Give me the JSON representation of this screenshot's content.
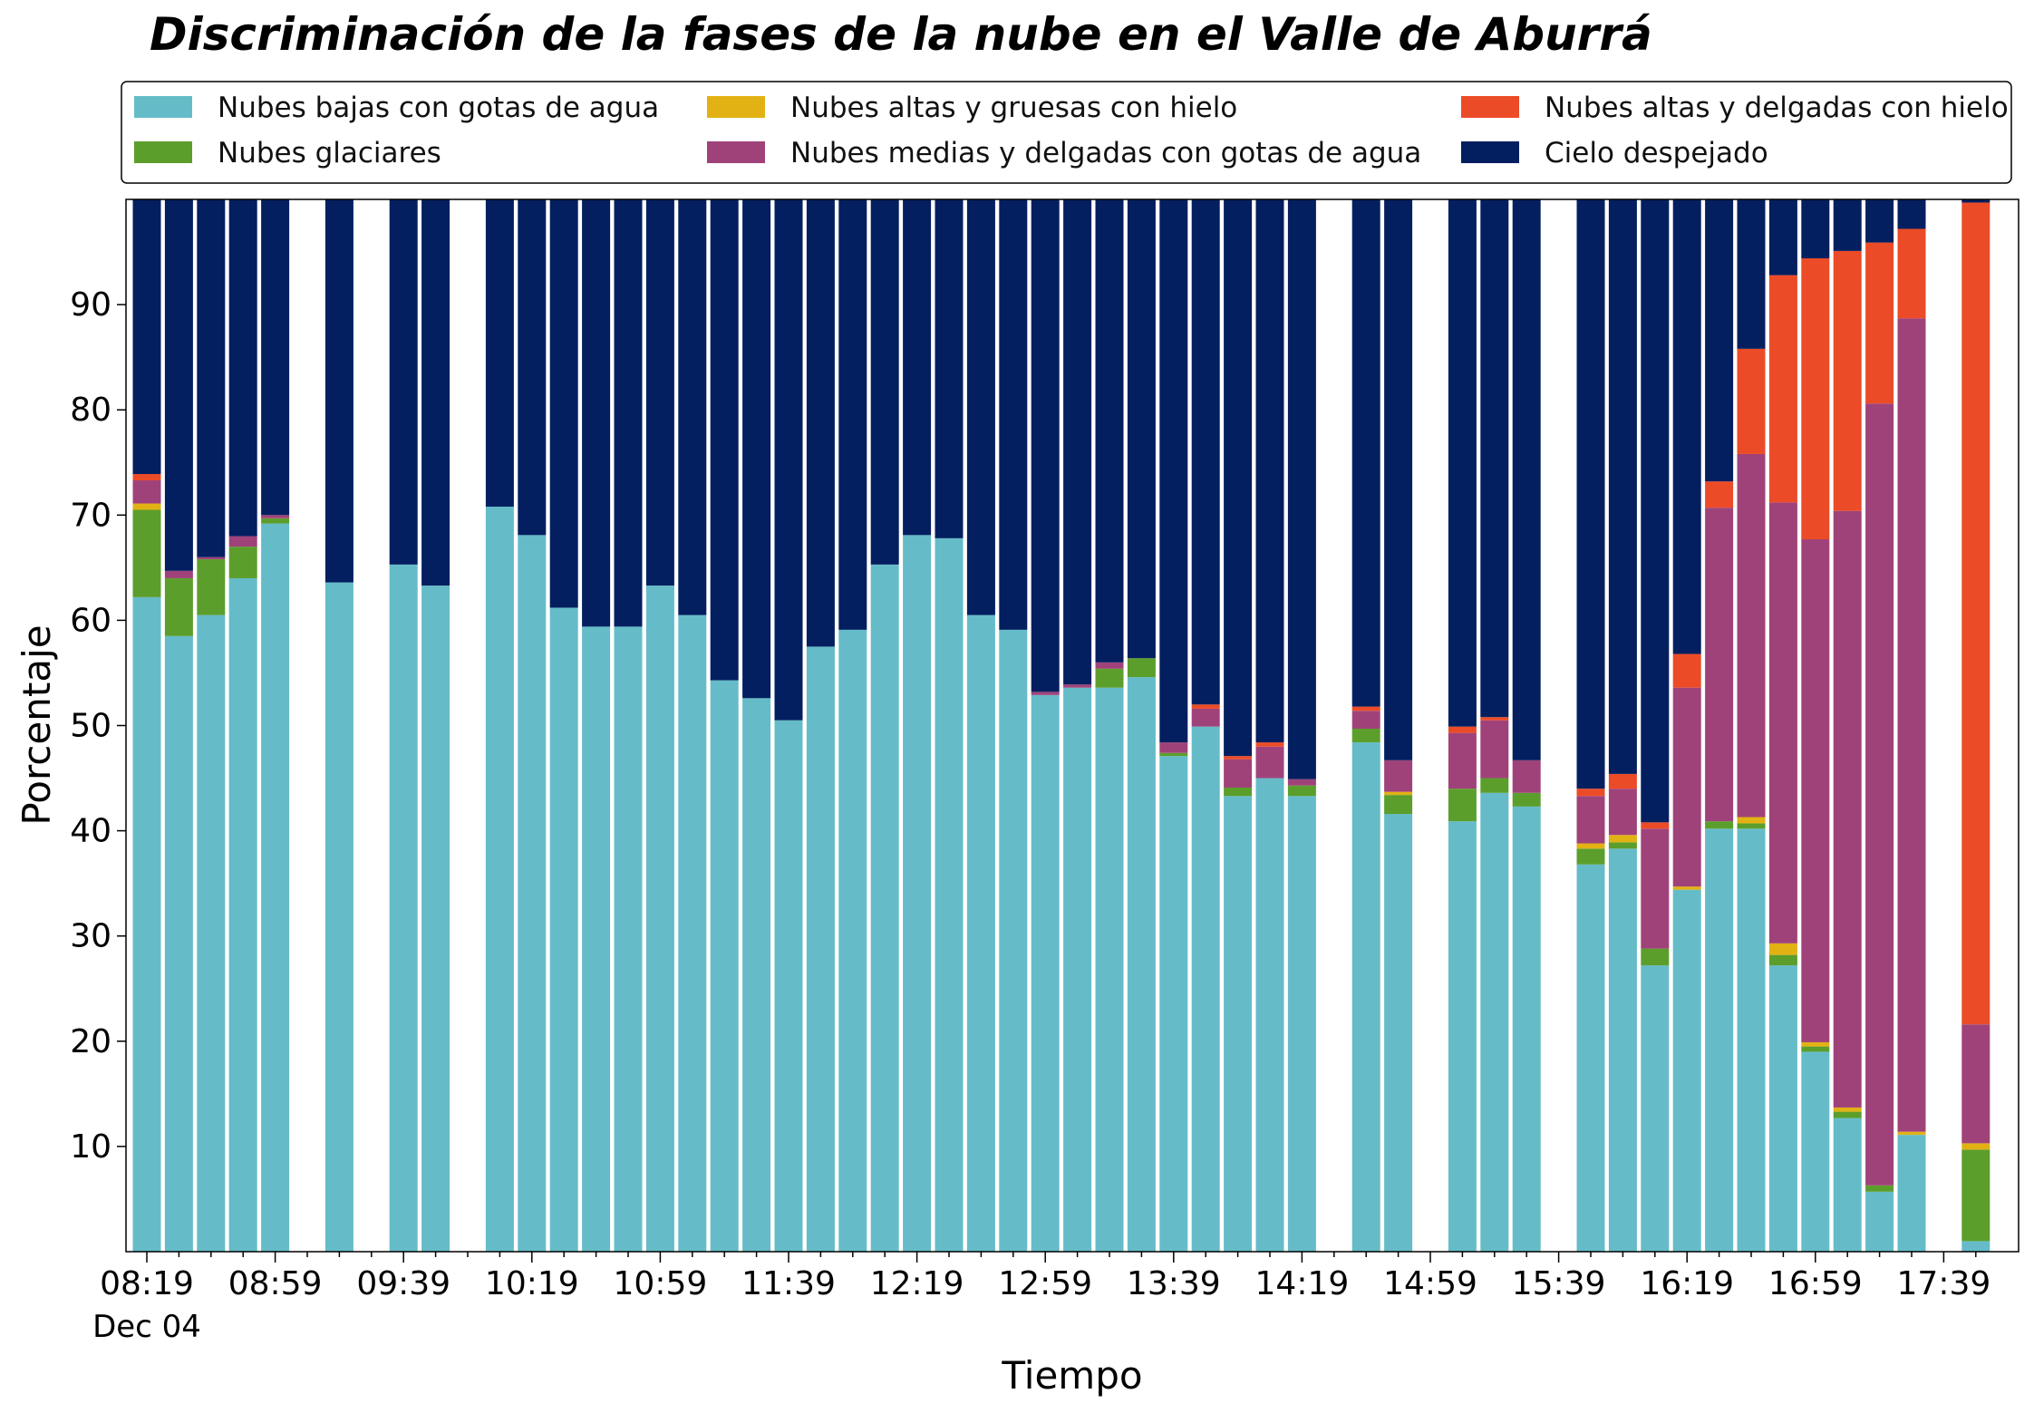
{
  "chart_data": {
    "type": "bar",
    "stacked": true,
    "title": "Discriminación de la fases de la nube en el Valle de Aburrá",
    "xlabel": "Tiempo",
    "ylabel": "Porcentaje",
    "date_label": "Dec 04",
    "ylim": [
      0,
      100
    ],
    "yticks": [
      10,
      20,
      30,
      40,
      50,
      60,
      70,
      80,
      90
    ],
    "xticks": [
      "08:19",
      "08:59",
      "09:39",
      "10:19",
      "10:59",
      "11:39",
      "12:19",
      "12:59",
      "13:39",
      "14:19",
      "14:59",
      "15:39",
      "16:19",
      "16:59",
      "17:39"
    ],
    "grid": false,
    "legend_position": "top",
    "x": [
      "08:19",
      "08:29",
      "08:39",
      "08:49",
      "08:59",
      "09:09",
      "09:19",
      "09:29",
      "09:39",
      "09:49",
      "09:59",
      "10:09",
      "10:19",
      "10:29",
      "10:39",
      "10:49",
      "10:59",
      "11:09",
      "11:19",
      "11:29",
      "11:39",
      "11:49",
      "11:59",
      "12:09",
      "12:19",
      "12:29",
      "12:39",
      "12:49",
      "12:59",
      "13:09",
      "13:19",
      "13:29",
      "13:39",
      "13:49",
      "13:59",
      "14:09",
      "14:19",
      "14:29",
      "14:39",
      "14:49",
      "14:59",
      "15:09",
      "15:19",
      "15:29",
      "15:39",
      "15:49",
      "15:59",
      "16:09",
      "16:19",
      "16:29",
      "16:39",
      "16:49",
      "16:59",
      "17:09",
      "17:19",
      "17:29",
      "17:39",
      "17:49"
    ],
    "series": [
      {
        "name": "Nubes bajas con gotas de agua",
        "color": "#65BCC8",
        "values": [
          62.2,
          58.5,
          60.5,
          64.0,
          69.2,
          null,
          63.6,
          null,
          65.3,
          63.3,
          null,
          70.8,
          68.1,
          61.2,
          59.4,
          59.4,
          63.3,
          60.5,
          54.3,
          52.6,
          50.5,
          57.5,
          59.1,
          65.3,
          68.1,
          67.8,
          60.5,
          59.1,
          52.9,
          53.6,
          53.6,
          54.6,
          47.1,
          49.9,
          43.3,
          45.0,
          43.3,
          null,
          48.4,
          41.6,
          null,
          40.9,
          43.6,
          42.3,
          null,
          36.8,
          38.3,
          27.2,
          34.4,
          40.2,
          40.2,
          27.2,
          19.0,
          12.7,
          5.7,
          11.1,
          null,
          1.0
        ]
      },
      {
        "name": "Nubes glaciares",
        "color": "#5C9E2C",
        "values": [
          8.3,
          5.5,
          5.3,
          3.0,
          0.5,
          null,
          0,
          null,
          0,
          0,
          null,
          0,
          0,
          0,
          0,
          0,
          0,
          0,
          0,
          0,
          0,
          0,
          0,
          0,
          0,
          0,
          0,
          0,
          0,
          0,
          1.8,
          1.8,
          0.3,
          0,
          0.8,
          0,
          1.0,
          null,
          1.3,
          1.8,
          null,
          3.1,
          1.4,
          1.3,
          null,
          1.5,
          0.6,
          1.6,
          0,
          0.7,
          0.5,
          1.0,
          0.5,
          0.6,
          0.6,
          0,
          null,
          8.7
        ]
      },
      {
        "name": "Nubes altas y gruesas con hielo",
        "color": "#E2B214",
        "values": [
          0.6,
          0,
          0,
          0,
          0,
          null,
          0,
          null,
          0,
          0,
          null,
          0,
          0,
          0,
          0,
          0,
          0,
          0,
          0,
          0,
          0,
          0,
          0,
          0,
          0,
          0,
          0,
          0,
          0,
          0,
          0,
          0,
          0,
          0,
          0,
          0,
          0,
          null,
          0,
          0.3,
          null,
          0,
          0,
          0,
          null,
          0.5,
          0.7,
          0,
          0.3,
          0,
          0.6,
          1.1,
          0.4,
          0.4,
          0,
          0.3,
          null,
          0.6
        ]
      },
      {
        "name": "Nubes medias y delgadas con gotas de agua",
        "color": "#A0427A",
        "values": [
          2.2,
          0.7,
          0.2,
          1.0,
          0.3,
          null,
          0,
          null,
          0,
          0,
          null,
          0,
          0,
          0,
          0,
          0,
          0,
          0,
          0,
          0,
          0,
          0,
          0,
          0,
          0,
          0,
          0,
          0,
          0.3,
          0.3,
          0.6,
          0,
          1.0,
          1.7,
          2.7,
          3.0,
          0.6,
          null,
          1.7,
          3.0,
          null,
          5.3,
          5.5,
          3.1,
          null,
          4.5,
          4.4,
          11.4,
          18.9,
          29.8,
          34.5,
          41.9,
          47.8,
          56.7,
          74.3,
          77.3,
          null,
          11.3
        ]
      },
      {
        "name": "Nubes altas y delgadas con hielo",
        "color": "#EC4B27",
        "values": [
          0.6,
          0,
          0,
          0,
          0,
          null,
          0,
          null,
          0,
          0,
          null,
          0,
          0,
          0,
          0,
          0,
          0,
          0,
          0,
          0,
          0,
          0,
          0,
          0,
          0,
          0,
          0,
          0,
          0,
          0,
          0,
          0,
          0,
          0.4,
          0.3,
          0.4,
          0,
          null,
          0.4,
          0,
          null,
          0.6,
          0.3,
          0,
          null,
          0.7,
          1.4,
          0.6,
          3.2,
          2.5,
          10.0,
          21.6,
          26.7,
          24.7,
          15.3,
          8.5,
          null,
          78.1
        ]
      },
      {
        "name": "Cielo despejado",
        "color": "#041F60",
        "values": [
          26.1,
          35.3,
          34.0,
          32.0,
          30.0,
          null,
          36.4,
          null,
          34.7,
          36.7,
          null,
          29.2,
          31.9,
          38.8,
          40.6,
          40.6,
          36.7,
          39.5,
          45.7,
          47.4,
          49.5,
          42.5,
          40.9,
          34.7,
          31.9,
          32.2,
          39.5,
          40.9,
          46.8,
          46.1,
          44.0,
          43.6,
          51.6,
          48.0,
          52.9,
          51.6,
          55.1,
          null,
          48.2,
          53.3,
          null,
          50.1,
          49.2,
          53.3,
          null,
          56.0,
          54.6,
          59.2,
          43.2,
          26.8,
          14.2,
          7.2,
          5.6,
          4.9,
          4.1,
          2.8,
          null,
          0.3
        ]
      }
    ]
  }
}
